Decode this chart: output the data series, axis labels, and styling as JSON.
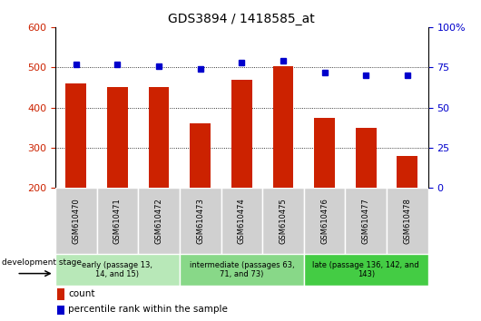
{
  "title": "GDS3894 / 1418585_at",
  "samples": [
    "GSM610470",
    "GSM610471",
    "GSM610472",
    "GSM610473",
    "GSM610474",
    "GSM610475",
    "GSM610476",
    "GSM610477",
    "GSM610478"
  ],
  "counts": [
    460,
    450,
    452,
    360,
    470,
    502,
    375,
    350,
    280
  ],
  "percentiles": [
    77,
    77,
    76,
    74,
    78,
    79,
    72,
    70,
    70
  ],
  "ylim_left": [
    200,
    600
  ],
  "ylim_right": [
    0,
    100
  ],
  "yticks_left": [
    200,
    300,
    400,
    500,
    600
  ],
  "yticks_right": [
    0,
    25,
    50,
    75,
    100
  ],
  "ytick_right_labels": [
    "0",
    "25",
    "50",
    "75",
    "100%"
  ],
  "bar_color": "#cc2200",
  "dot_color": "#0000cc",
  "groups": [
    {
      "label": "early (passage 13,\n14, and 15)",
      "start": 0,
      "end": 3,
      "color": "#b8e8b8"
    },
    {
      "label": "intermediate (passages 63,\n71, and 73)",
      "start": 3,
      "end": 6,
      "color": "#88d888"
    },
    {
      "label": "late (passage 136, 142, and\n143)",
      "start": 6,
      "end": 9,
      "color": "#44cc44"
    }
  ],
  "dev_stage_label": "development stage",
  "legend_count_label": "count",
  "legend_percentile_label": "percentile rank within the sample",
  "title_fontsize": 10,
  "tick_fontsize": 8,
  "sample_fontsize": 6,
  "group_fontsize": 6
}
